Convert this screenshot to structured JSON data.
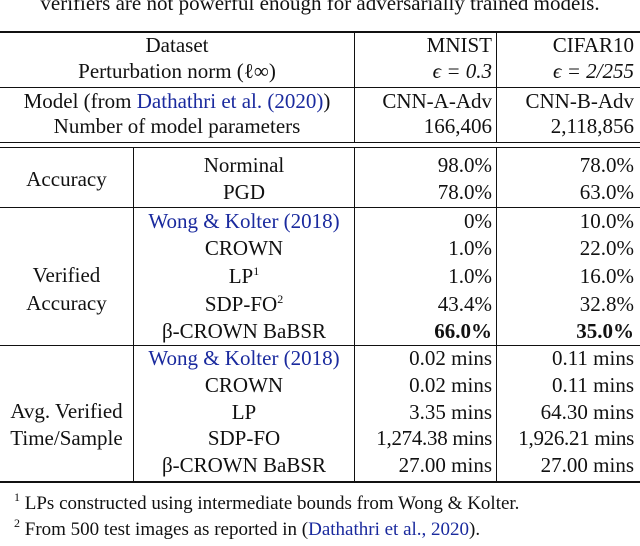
{
  "caption_fragment": "verifiers are not powerful enough for adversarially trained models.",
  "header": {
    "dataset_label": "Dataset",
    "norm_label": "Perturbation norm (ℓ∞)",
    "model_label_prefix": "Model (from ",
    "model_label_cite": "Dathathri et al. (2020)",
    "model_label_suffix": ")",
    "params_label": "Number of model parameters",
    "mnist": {
      "name": "MNIST",
      "eps": "ϵ = 0.3",
      "model": "CNN-A-Adv",
      "params": "166,406"
    },
    "cifar": {
      "name": "CIFAR10",
      "eps": "ϵ = 2/255",
      "model": "CNN-B-Adv",
      "params": "2,118,856"
    }
  },
  "accuracy": {
    "group_label": "Accuracy",
    "rows": [
      {
        "method": "Norminal",
        "mnist": "98.0%",
        "cifar": "78.0%"
      },
      {
        "method": "PGD",
        "mnist": "78.0%",
        "cifar": "63.0%"
      }
    ]
  },
  "verified": {
    "group_label_1": "Verified",
    "group_label_2": "Accuracy",
    "rows": [
      {
        "method": "Wong & Kolter (2018)",
        "mnist": "0%",
        "cifar": "10.0%"
      },
      {
        "method": "CROWN",
        "mnist": "1.0%",
        "cifar": "22.0%"
      },
      {
        "method": "LP",
        "sup": "1",
        "mnist": "1.0%",
        "cifar": "16.0%"
      },
      {
        "method": "SDP-FO",
        "sup": "2",
        "mnist": "43.4%",
        "cifar": "32.8%"
      },
      {
        "method": "β-CROWN BaBSR",
        "mnist": "66.0%",
        "cifar": "35.0%"
      }
    ]
  },
  "time": {
    "group_label_1": "Avg. Verified",
    "group_label_2": "Time/Sample",
    "rows": [
      {
        "method": "Wong & Kolter (2018)",
        "mnist": "0.02 mins",
        "cifar": "0.11 mins"
      },
      {
        "method": "CROWN",
        "mnist": "0.02 mins",
        "cifar": "0.11 mins"
      },
      {
        "method": "LP",
        "mnist": "3.35 mins",
        "cifar": "64.30 mins"
      },
      {
        "method": "SDP-FO",
        "mnist": "1,274.38 mins",
        "cifar": "1,926.21 mins"
      },
      {
        "method": "β-CROWN BaBSR",
        "mnist": "27.00 mins",
        "cifar": "27.00 mins"
      }
    ]
  },
  "footnotes": {
    "f1_mark": "1",
    "f1_text": "LPs constructed using intermediate bounds from Wong & Kolter.",
    "f2_mark": "2",
    "f2_text_prefix": "From 500 test images as reported in (",
    "f2_cite": "Dathathri et al., 2020",
    "f2_text_suffix": ")."
  },
  "colors": {
    "citation": "#1a2a9e",
    "text": "#111111"
  }
}
